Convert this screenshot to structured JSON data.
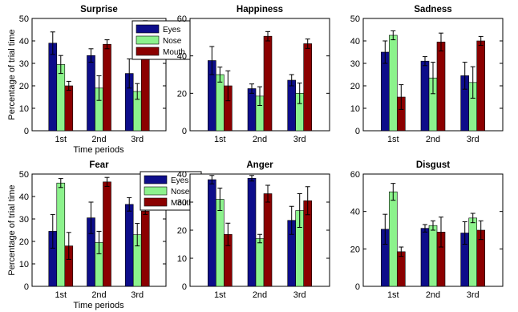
{
  "figure": {
    "ylabel": "Percentage of trial time",
    "xlabel": "Time periods"
  },
  "colors": {
    "Eyes": "#0d0d8a",
    "Nose": "#8cf28c",
    "Mouth": "#8b0000"
  },
  "chart_data": [
    {
      "type": "bar",
      "title": "Surprise",
      "categories": [
        "1st",
        "2nd",
        "3rd"
      ],
      "ylim": [
        0,
        50
      ],
      "yticks": [
        0,
        10,
        20,
        30,
        40,
        50
      ],
      "ylabel": "Percentage of trial time",
      "xlabel": "Time periods",
      "legend": "top-right",
      "series": [
        {
          "name": "Eyes",
          "values": [
            39,
            33.5,
            25.5
          ],
          "errors": [
            5,
            3,
            6.5
          ]
        },
        {
          "name": "Nose",
          "values": [
            29.5,
            19,
            17.5
          ],
          "errors": [
            4,
            5.5,
            3.5
          ]
        },
        {
          "name": "Mouth",
          "values": [
            20,
            38.5,
            47.5
          ],
          "errors": [
            2,
            2,
            1.5
          ]
        }
      ]
    },
    {
      "type": "bar",
      "title": "Happiness",
      "categories": [
        "1st",
        "2nd",
        "3rd"
      ],
      "ylim": [
        0,
        60
      ],
      "yticks": [
        0,
        20,
        40,
        60
      ],
      "series": [
        {
          "name": "Eyes",
          "values": [
            37.5,
            22.5,
            27
          ],
          "errors": [
            7.5,
            2.5,
            3
          ]
        },
        {
          "name": "Nose",
          "values": [
            30,
            18.5,
            20
          ],
          "errors": [
            4,
            5,
            5.5
          ]
        },
        {
          "name": "Mouth",
          "values": [
            24,
            50.5,
            46.5
          ],
          "errors": [
            8,
            2.5,
            2.5
          ]
        }
      ]
    },
    {
      "type": "bar",
      "title": "Sadness",
      "categories": [
        "1st",
        "2nd",
        "3rd"
      ],
      "ylim": [
        0,
        50
      ],
      "yticks": [
        0,
        10,
        20,
        30,
        40,
        50
      ],
      "series": [
        {
          "name": "Eyes",
          "values": [
            35,
            31,
            24.5
          ],
          "errors": [
            5,
            2,
            6
          ]
        },
        {
          "name": "Nose",
          "values": [
            42.5,
            23.5,
            21.5
          ],
          "errors": [
            2,
            7,
            7
          ]
        },
        {
          "name": "Mouth",
          "values": [
            15,
            39.5,
            40
          ],
          "errors": [
            5.5,
            4,
            2
          ]
        }
      ]
    },
    {
      "type": "bar",
      "title": "Fear",
      "categories": [
        "1st",
        "2nd",
        "3rd"
      ],
      "ylim": [
        0,
        50
      ],
      "yticks": [
        0,
        10,
        20,
        30,
        40,
        50
      ],
      "ylabel": "Percentage of trial time",
      "xlabel": "Time periods",
      "legend": "top-right",
      "series": [
        {
          "name": "Eyes",
          "values": [
            24.5,
            30.5,
            36.5
          ],
          "errors": [
            7.5,
            7,
            3
          ]
        },
        {
          "name": "Nose",
          "values": [
            46,
            19.5,
            23
          ],
          "errors": [
            2,
            5,
            5
          ]
        },
        {
          "name": "Mouth",
          "values": [
            18,
            46.5,
            33.5
          ],
          "errors": [
            6,
            2,
            1.5
          ]
        }
      ]
    },
    {
      "type": "bar",
      "title": "Anger",
      "categories": [
        "1st",
        "2nd",
        "3rd"
      ],
      "ylim": [
        0,
        40
      ],
      "yticks": [
        0,
        10,
        20,
        30,
        40
      ],
      "series": [
        {
          "name": "Eyes",
          "values": [
            38,
            38.5,
            23.5
          ],
          "errors": [
            1.5,
            1,
            5
          ]
        },
        {
          "name": "Nose",
          "values": [
            31,
            17,
            27
          ],
          "errors": [
            4,
            1.5,
            6
          ]
        },
        {
          "name": "Mouth",
          "values": [
            18.5,
            33,
            30.5
          ],
          "errors": [
            4,
            3,
            5
          ]
        }
      ]
    },
    {
      "type": "bar",
      "title": "Disgust",
      "categories": [
        "1st",
        "2nd",
        "3rd"
      ],
      "ylim": [
        0,
        60
      ],
      "yticks": [
        0,
        20,
        40,
        60
      ],
      "series": [
        {
          "name": "Eyes",
          "values": [
            30.5,
            31,
            28.5
          ],
          "errors": [
            8,
            2,
            6
          ]
        },
        {
          "name": "Nose",
          "values": [
            50.5,
            32.5,
            36.5
          ],
          "errors": [
            4.5,
            2.5,
            2.5
          ]
        },
        {
          "name": "Mouth",
          "values": [
            18.5,
            29,
            30
          ],
          "errors": [
            2.5,
            8,
            5
          ]
        }
      ]
    }
  ]
}
